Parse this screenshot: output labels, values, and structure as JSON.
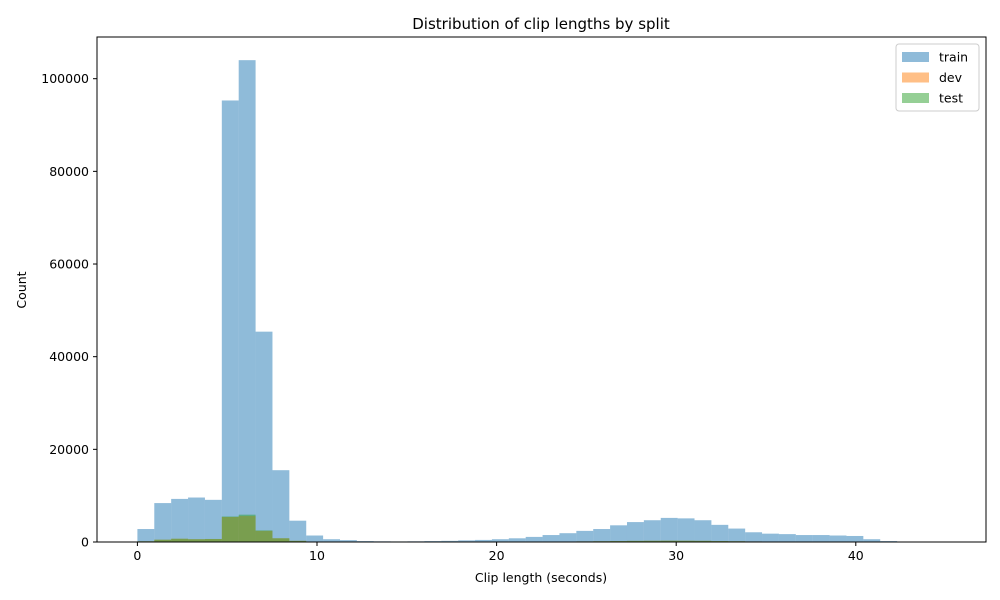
{
  "chart_data": {
    "type": "bar",
    "title": "Distribution of clip lengths by split",
    "xlabel": "Clip length (seconds)",
    "ylabel": "Count",
    "xlim": [
      -2.25,
      47.25
    ],
    "ylim": [
      0,
      109000
    ],
    "x_ticks": [
      0,
      10,
      20,
      30,
      40
    ],
    "y_ticks": [
      0,
      20000,
      40000,
      60000,
      80000,
      100000
    ],
    "bin_width": 0.94,
    "bin_start": 0,
    "grid": false,
    "legend_position": "top-right",
    "bins": [
      0.0,
      0.94,
      1.88,
      2.82,
      3.76,
      4.7,
      5.64,
      6.58,
      7.52,
      8.46,
      9.4,
      10.34,
      11.28,
      12.22,
      13.16,
      14.1,
      15.04,
      15.98,
      16.92,
      17.86,
      18.8,
      19.74,
      20.68,
      21.62,
      22.56,
      23.5,
      24.44,
      25.38,
      26.32,
      27.26,
      28.2,
      29.14,
      30.08,
      31.02,
      31.96,
      32.9,
      33.84,
      34.78,
      35.72,
      36.66,
      37.6,
      38.54,
      39.48,
      40.42,
      41.36,
      42.3,
      43.24,
      44.18
    ],
    "series": [
      {
        "name": "train",
        "color": "#1f77b4",
        "values": [
          2800,
          8400,
          9300,
          9600,
          9100,
          95300,
          104000,
          45400,
          15500,
          4600,
          1400,
          600,
          400,
          200,
          150,
          120,
          150,
          200,
          250,
          350,
          450,
          600,
          800,
          1100,
          1500,
          1900,
          2400,
          2800,
          3600,
          4300,
          4700,
          5200,
          5100,
          4700,
          3700,
          2900,
          2100,
          1800,
          1700,
          1500,
          1500,
          1400,
          1300,
          600,
          200,
          0,
          0,
          0
        ]
      },
      {
        "name": "dev",
        "color": "#ff7f0e",
        "values": [
          150,
          500,
          700,
          600,
          650,
          5400,
          5600,
          2400,
          800,
          250,
          80,
          30,
          20,
          10,
          5,
          5,
          5,
          10,
          15,
          20,
          25,
          35,
          45,
          60,
          80,
          100,
          130,
          160,
          200,
          240,
          260,
          280,
          270,
          250,
          200,
          160,
          120,
          100,
          90,
          80,
          80,
          75,
          70,
          30,
          10,
          0,
          0,
          0
        ]
      },
      {
        "name": "test",
        "color": "#2ca02c",
        "values": [
          150,
          500,
          700,
          600,
          650,
          5500,
          5900,
          2500,
          800,
          250,
          80,
          30,
          20,
          10,
          5,
          5,
          5,
          10,
          15,
          20,
          25,
          35,
          45,
          60,
          80,
          100,
          130,
          160,
          200,
          240,
          260,
          280,
          270,
          250,
          200,
          160,
          120,
          100,
          90,
          80,
          80,
          75,
          70,
          30,
          10,
          0,
          0,
          0
        ]
      }
    ]
  }
}
